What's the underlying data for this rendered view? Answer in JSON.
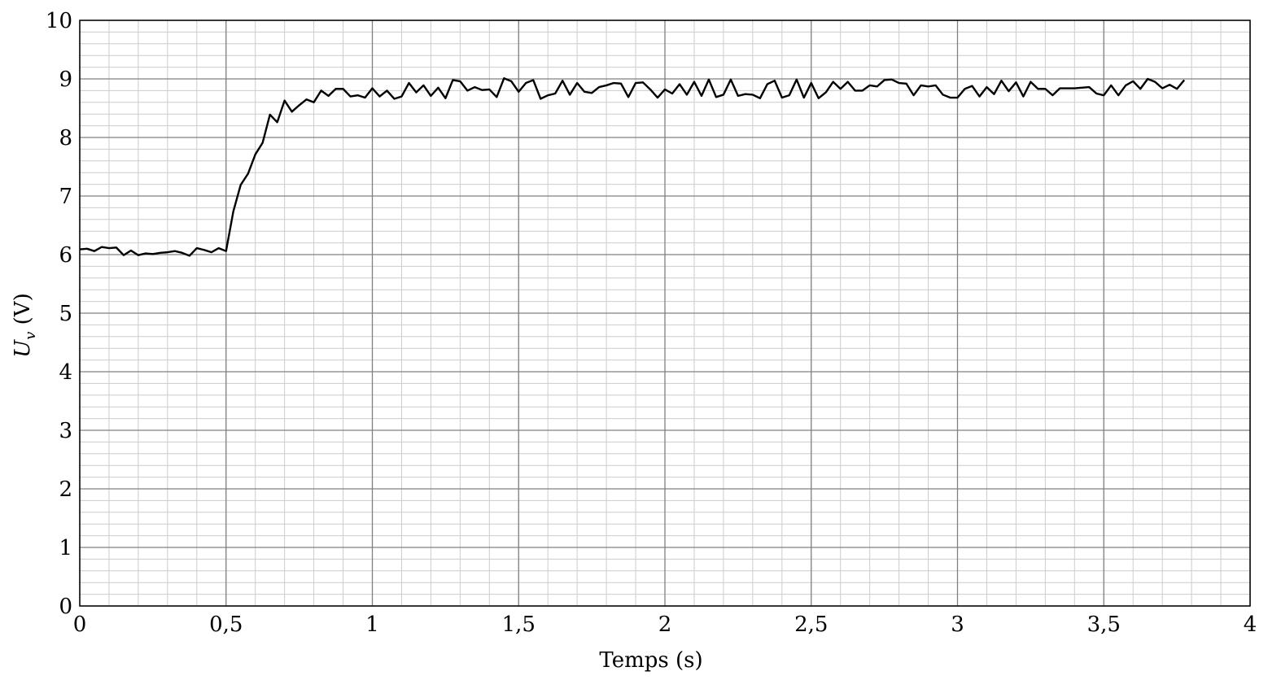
{
  "chart_data": {
    "type": "line",
    "xlabel": "Temps (s)",
    "ylabel_symbol": "U",
    "ylabel_subscript": "v",
    "ylabel_unit": " (V)",
    "xlim": [
      0,
      4
    ],
    "ylim": [
      0,
      10
    ],
    "x_ticks": [
      0,
      0.5,
      1,
      1.5,
      2,
      2.5,
      3,
      3.5,
      4
    ],
    "x_tick_labels": [
      "0",
      "0,5",
      "1",
      "1,5",
      "2",
      "2,5",
      "3",
      "3,5",
      "4"
    ],
    "y_ticks": [
      0,
      1,
      2,
      3,
      4,
      5,
      6,
      7,
      8,
      9,
      10
    ],
    "y_tick_labels": [
      "0",
      "1",
      "2",
      "3",
      "4",
      "5",
      "6",
      "7",
      "8",
      "9",
      "10"
    ],
    "grid": true,
    "minor_grid": true,
    "minor_x_step": 0.1,
    "minor_y_step": 0.2,
    "colors": {
      "line": "#000000",
      "major_grid": "#808080",
      "minor_grid": "#cccccc",
      "frame": "#000000"
    },
    "series": [
      {
        "x": [
          0,
          0.025,
          0.05,
          0.075,
          0.1,
          0.125,
          0.15,
          0.175,
          0.2,
          0.225,
          0.25,
          0.275,
          0.3,
          0.325,
          0.35,
          0.375,
          0.4,
          0.425,
          0.45,
          0.475,
          0.5,
          0.525,
          0.55,
          0.575,
          0.6,
          0.625,
          0.65,
          0.675,
          0.7,
          0.725,
          0.75,
          0.775,
          0.8,
          0.825,
          0.85,
          0.875,
          0.9,
          0.925,
          0.95,
          0.975,
          1,
          1.025,
          1.05,
          1.075,
          1.1,
          1.125,
          1.15,
          1.175,
          1.2,
          1.225,
          1.25,
          1.275,
          1.3,
          1.325,
          1.35,
          1.375,
          1.4,
          1.425,
          1.45,
          1.475,
          1.5,
          1.525,
          1.55,
          1.575,
          1.6,
          1.625,
          1.65,
          1.675,
          1.7,
          1.725,
          1.75,
          1.775,
          1.8,
          1.825,
          1.85,
          1.875,
          1.9,
          1.925,
          1.95,
          1.975,
          2,
          2.025,
          2.05,
          2.075,
          2.1,
          2.125,
          2.15,
          2.175,
          2.2,
          2.225,
          2.25,
          2.275,
          2.3,
          2.325,
          2.35,
          2.375,
          2.4,
          2.425,
          2.45,
          2.475,
          2.5,
          2.525,
          2.55,
          2.575,
          2.6,
          2.625,
          2.65,
          2.675,
          2.7,
          2.725,
          2.75,
          2.775,
          2.8,
          2.825,
          2.85,
          2.875,
          2.9,
          2.925,
          2.95,
          2.975,
          3,
          3.025,
          3.05,
          3.075,
          3.1,
          3.125,
          3.15,
          3.175,
          3.2,
          3.225,
          3.25,
          3.275,
          3.3,
          3.325,
          3.35,
          3.375,
          3.4,
          3.425,
          3.45,
          3.475,
          3.5,
          3.525,
          3.55,
          3.575,
          3.6,
          3.625,
          3.65,
          3.675,
          3.7,
          3.725,
          3.75,
          3.775
        ],
        "y": [
          6.09,
          6.1,
          6.06,
          6.13,
          6.11,
          6.12,
          5.99,
          6.07,
          5.99,
          6.02,
          6.01,
          6.03,
          6.04,
          6.06,
          6.03,
          5.98,
          6.11,
          6.08,
          6.04,
          6.11,
          6.06,
          6.74,
          7.19,
          7.38,
          7.71,
          7.91,
          8.39,
          8.26,
          8.63,
          8.44,
          8.55,
          8.65,
          8.6,
          8.8,
          8.71,
          8.83,
          8.83,
          8.7,
          8.72,
          8.68,
          8.84,
          8.7,
          8.8,
          8.66,
          8.7,
          8.93,
          8.77,
          8.89,
          8.71,
          8.85,
          8.67,
          8.98,
          8.96,
          8.8,
          8.86,
          8.81,
          8.82,
          8.69,
          9.01,
          8.96,
          8.78,
          8.93,
          8.98,
          8.66,
          8.72,
          8.75,
          8.97,
          8.73,
          8.93,
          8.78,
          8.76,
          8.86,
          8.89,
          8.93,
          8.92,
          8.69,
          8.93,
          8.94,
          8.82,
          8.68,
          8.82,
          8.75,
          8.91,
          8.73,
          8.95,
          8.71,
          8.99,
          8.69,
          8.73,
          8.99,
          8.71,
          8.74,
          8.73,
          8.67,
          8.91,
          8.97,
          8.68,
          8.72,
          8.99,
          8.68,
          8.93,
          8.67,
          8.77,
          8.95,
          8.83,
          8.95,
          8.8,
          8.8,
          8.89,
          8.87,
          8.98,
          8.99,
          8.93,
          8.92,
          8.72,
          8.89,
          8.87,
          8.89,
          8.73,
          8.68,
          8.68,
          8.83,
          8.88,
          8.7,
          8.86,
          8.74,
          8.97,
          8.79,
          8.94,
          8.7,
          8.95,
          8.83,
          8.83,
          8.72,
          8.84,
          8.84,
          8.84,
          8.85,
          8.86,
          8.75,
          8.72,
          8.89,
          8.72,
          8.89,
          8.96,
          8.83,
          9.0,
          8.95,
          8.84,
          8.9,
          8.83,
          8.98
        ]
      }
    ]
  }
}
